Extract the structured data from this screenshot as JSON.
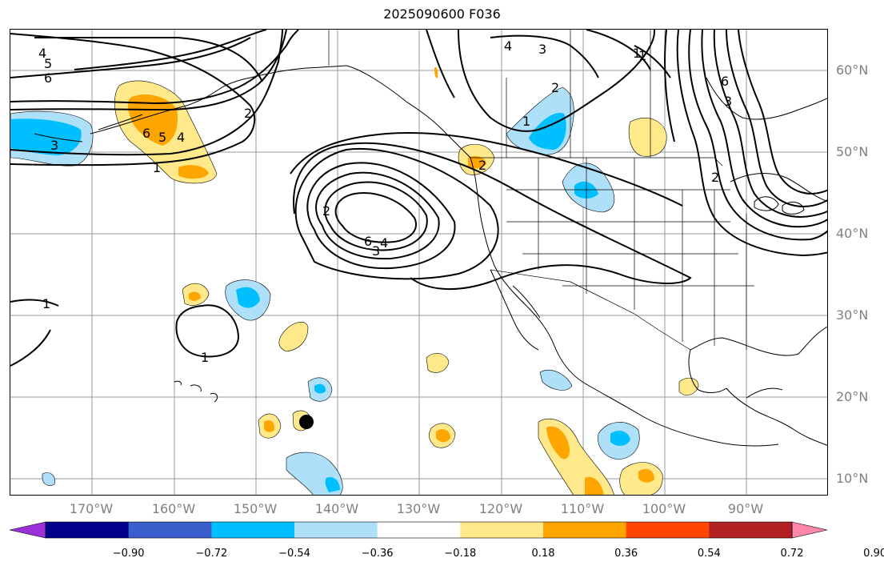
{
  "title": "2025090600 F036",
  "lat_labels": [
    "60°N",
    "50°N",
    "40°N",
    "30°N",
    "20°N",
    "10°N"
  ],
  "lon_labels": [
    "170°W",
    "160°W",
    "150°W",
    "140°W",
    "130°W",
    "120°W",
    "110°W",
    "100°W",
    "90°W"
  ],
  "colorbar": {
    "ticks": [
      "−0.90",
      "−0.72",
      "−0.54",
      "−0.36",
      "−0.18",
      "0.18",
      "0.36",
      "0.54",
      "0.72",
      "0.90"
    ],
    "colors": [
      "#9b30d9",
      "#00008b",
      "#3a5fcd",
      "#00bfff",
      "#aee0fa",
      "#ffffff",
      "#ffe98a",
      "#ffa500",
      "#ff4500",
      "#b22222",
      "#ff88aa"
    ]
  },
  "contour_labels": [
    "4",
    "5",
    "6",
    "2",
    "1",
    "6",
    "5",
    "4",
    "3",
    "1",
    "4",
    "3",
    "2",
    "1",
    "2",
    "1",
    "6",
    "3",
    "2",
    "6",
    "4",
    "3",
    "2",
    "1",
    "1"
  ],
  "marker": "storm-center"
}
